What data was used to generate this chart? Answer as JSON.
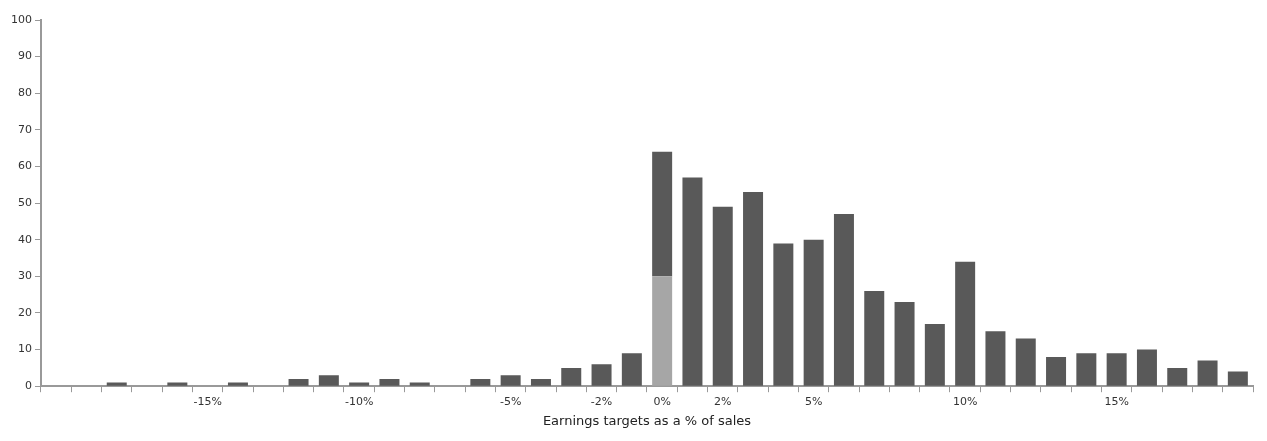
{
  "chart_data": {
    "type": "bar",
    "stacked": true,
    "xlabel": "Earnings targets as a % of sales",
    "categories": [
      null,
      null,
      null,
      null,
      null,
      "-15%",
      null,
      null,
      null,
      null,
      "-10%",
      null,
      null,
      null,
      null,
      "-5%",
      null,
      null,
      "-2%",
      null,
      "0%",
      null,
      "2%",
      null,
      null,
      "5%",
      null,
      null,
      null,
      null,
      "10%",
      null,
      null,
      null,
      null,
      "15%",
      null,
      null,
      null,
      null
    ],
    "series": [
      {
        "color": "#a6a6a6",
        "values": [
          0,
          0,
          0,
          0,
          0,
          0,
          0,
          0,
          0,
          0,
          0,
          0,
          0,
          0,
          0,
          0,
          0,
          0,
          0,
          0,
          30,
          0,
          0,
          0,
          0,
          0,
          0,
          0,
          0,
          0,
          0,
          0,
          0,
          0,
          0,
          0,
          0,
          0,
          0,
          0
        ]
      },
      {
        "color": "#595959",
        "values": [
          0,
          0,
          1,
          0,
          1,
          0,
          1,
          0,
          2,
          3,
          1,
          2,
          1,
          0,
          2,
          3,
          2,
          5,
          6,
          9,
          34,
          57,
          49,
          53,
          39,
          40,
          47,
          26,
          23,
          17,
          34,
          15,
          13,
          8,
          9,
          9,
          10,
          5,
          7,
          4
        ]
      }
    ],
    "ylim": [
      0,
      100
    ],
    "yticks": [
      0,
      10,
      20,
      30,
      40,
      50,
      60,
      70,
      80,
      90,
      100
    ],
    "grid": false,
    "legend": false
  }
}
